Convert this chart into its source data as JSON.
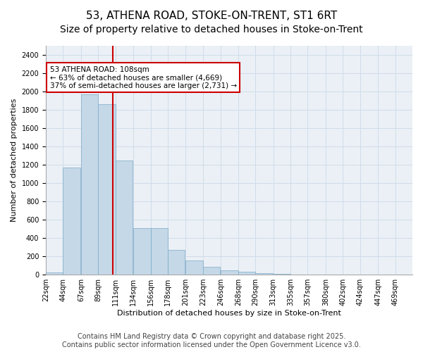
{
  "title_line1": "53, ATHENA ROAD, STOKE-ON-TRENT, ST1 6RT",
  "title_line2": "Size of property relative to detached houses in Stoke-on-Trent",
  "xlabel": "Distribution of detached houses by size in Stoke-on-Trent",
  "ylabel": "Number of detached properties",
  "bar_values": [
    25,
    1170,
    1970,
    1860,
    1250,
    510,
    510,
    270,
    155,
    85,
    45,
    35,
    20,
    10,
    5,
    5,
    5,
    2
  ],
  "bin_left_edges": [
    22,
    44,
    67,
    89,
    111,
    134,
    156,
    178,
    201,
    223,
    246,
    268,
    290,
    313,
    335,
    357,
    380,
    402
  ],
  "bin_width": 22,
  "bin_labels": [
    "22sqm",
    "44sqm",
    "67sqm",
    "89sqm",
    "111sqm",
    "134sqm",
    "156sqm",
    "178sqm",
    "201sqm",
    "223sqm",
    "246sqm",
    "268sqm",
    "290sqm",
    "313sqm",
    "335sqm",
    "357sqm",
    "380sqm",
    "402sqm",
    "424sqm",
    "447sqm",
    "469sqm"
  ],
  "xtick_positions": [
    22,
    44,
    67,
    89,
    111,
    134,
    156,
    178,
    201,
    223,
    246,
    268,
    290,
    313,
    335,
    357,
    380,
    402,
    424,
    447,
    469
  ],
  "property_size": 108,
  "vline_color": "#cc0000",
  "bar_facecolor": "#c5d8e8",
  "bar_edgecolor": "#7aaac8",
  "annotation_text": "53 ATHENA ROAD: 108sqm\n← 63% of detached houses are smaller (4,669)\n37% of semi-detached houses are larger (2,731) →",
  "annotation_box_color": "#cc0000",
  "ylim": [
    0,
    2500
  ],
  "yticks": [
    0,
    200,
    400,
    600,
    800,
    1000,
    1200,
    1400,
    1600,
    1800,
    2000,
    2200,
    2400
  ],
  "xlim_left": 22,
  "xlim_right": 491,
  "grid_color": "#d0dce8",
  "background_color": "#eaf0f6",
  "footer_text": "Contains HM Land Registry data © Crown copyright and database right 2025.\nContains public sector information licensed under the Open Government Licence v3.0.",
  "title_fontsize": 11,
  "subtitle_fontsize": 10,
  "label_fontsize": 8,
  "tick_fontsize": 7,
  "footer_fontsize": 7
}
